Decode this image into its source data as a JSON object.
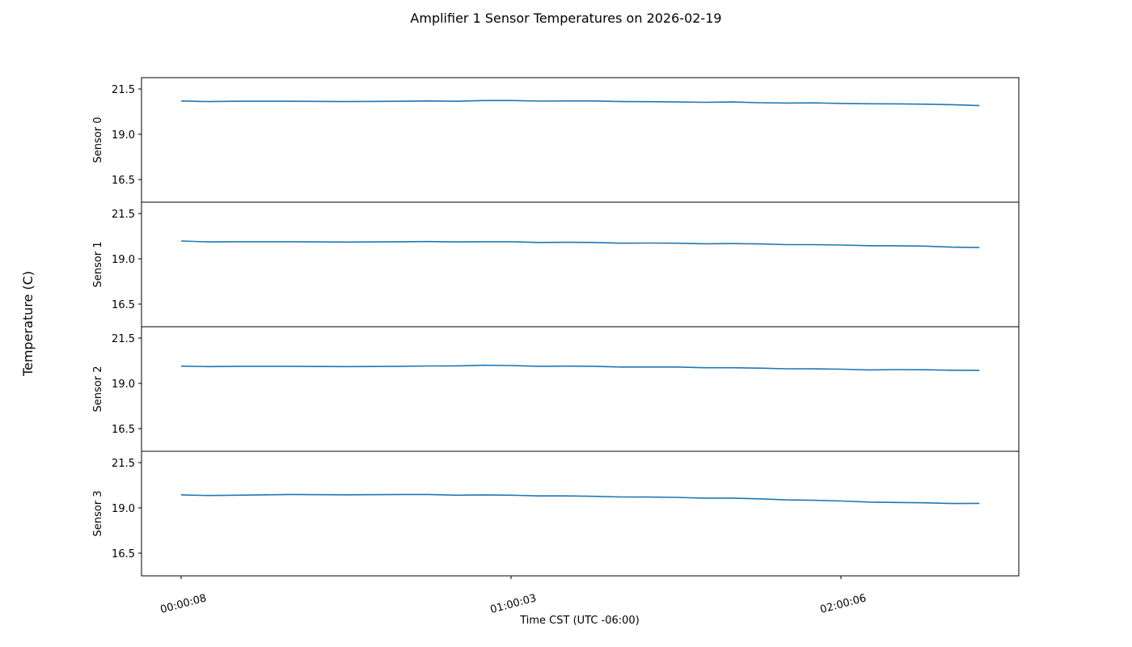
{
  "chart_data": {
    "type": "line",
    "title": "Amplifier 1 Sensor Temperatures on 2026-02-19",
    "xlabel": "Time CST (UTC -06:00)",
    "ylabel": "Temperature (C)",
    "x_tick_labels": [
      "00:00:08",
      "01:00:03",
      "02:00:06"
    ],
    "y_tick_labels": [
      "21.5",
      "19.0",
      "16.5"
    ],
    "ylim": [
      15.25,
      22.125
    ],
    "line_color": "#1f77b4",
    "legend": null,
    "grid": false,
    "x_unit": "minutes since 00:00:08",
    "panels": [
      {
        "name": "Sensor 0",
        "x": [
          0,
          5,
          10,
          20,
          30,
          40,
          45,
          50,
          55,
          60,
          65,
          70,
          75,
          80,
          85,
          90,
          95,
          100,
          105,
          110,
          115,
          120,
          125,
          130,
          135,
          140,
          145
        ],
        "y": [
          20.84,
          20.82,
          20.82,
          20.82,
          20.82,
          20.82,
          20.84,
          20.84,
          20.86,
          20.86,
          20.85,
          20.84,
          20.84,
          20.82,
          20.8,
          20.78,
          20.78,
          20.78,
          20.74,
          20.74,
          20.73,
          20.7,
          20.7,
          20.68,
          20.66,
          20.65,
          20.58
        ]
      },
      {
        "name": "Sensor 1",
        "x": [
          0,
          5,
          10,
          20,
          30,
          40,
          45,
          50,
          55,
          60,
          65,
          70,
          75,
          80,
          85,
          90,
          95,
          100,
          105,
          110,
          115,
          120,
          125,
          130,
          135,
          140,
          145
        ],
        "y": [
          19.98,
          19.95,
          19.94,
          19.94,
          19.94,
          19.94,
          19.95,
          19.95,
          19.94,
          19.94,
          19.92,
          19.91,
          19.9,
          19.88,
          19.87,
          19.86,
          19.85,
          19.84,
          19.82,
          19.8,
          19.78,
          19.76,
          19.74,
          19.72,
          19.7,
          19.66,
          19.62
        ]
      },
      {
        "name": "Sensor 2",
        "x": [
          0,
          5,
          10,
          20,
          30,
          40,
          45,
          50,
          55,
          60,
          65,
          70,
          75,
          80,
          85,
          90,
          95,
          100,
          105,
          110,
          115,
          120,
          125,
          130,
          135,
          140,
          145
        ],
        "y": [
          19.95,
          19.94,
          19.94,
          19.94,
          19.94,
          19.94,
          19.96,
          19.98,
          20.0,
          19.98,
          19.96,
          19.95,
          19.94,
          19.92,
          19.9,
          19.9,
          19.88,
          19.86,
          19.84,
          19.82,
          19.8,
          19.78,
          19.76,
          19.76,
          19.75,
          19.74,
          19.72
        ]
      },
      {
        "name": "Sensor 3",
        "x": [
          0,
          5,
          10,
          20,
          30,
          40,
          45,
          50,
          55,
          60,
          65,
          70,
          75,
          80,
          85,
          90,
          95,
          100,
          105,
          110,
          115,
          120,
          125,
          130,
          135,
          140,
          145
        ],
        "y": [
          19.72,
          19.7,
          19.7,
          19.74,
          19.74,
          19.74,
          19.74,
          19.72,
          19.72,
          19.7,
          19.68,
          19.66,
          19.64,
          19.62,
          19.6,
          19.58,
          19.56,
          19.54,
          19.5,
          19.46,
          19.42,
          19.38,
          19.34,
          19.3,
          19.28,
          19.26,
          19.25
        ]
      }
    ]
  }
}
